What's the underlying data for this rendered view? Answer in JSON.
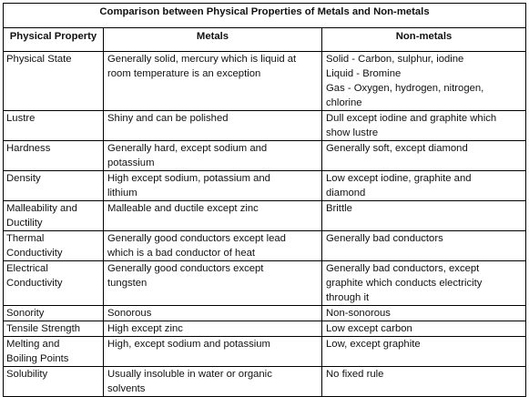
{
  "title": "Comparison between Physical Properties of Metals and Non-metals",
  "headers": [
    "Physical Property",
    "Metals",
    "Non-metals"
  ],
  "rows": [
    {
      "property": "Physical State",
      "metals": "Generally solid, mercury which is liquid at\nroom temperature is an exception",
      "nonmetals": "Solid - Carbon, sulphur, iodine\nLiquid - Bromine\nGas - Oxygen, hydrogen, nitrogen,\nchlorine"
    },
    {
      "property": "Lustre",
      "metals": "Shiny and can be polished",
      "nonmetals": "Dull except iodine and graphite which\nshow lustre"
    },
    {
      "property": "Hardness",
      "metals": "Generally hard, except sodium and\npotassium",
      "nonmetals": "Generally soft, except diamond"
    },
    {
      "property": "Density",
      "metals": "High except sodium, potassium and\nlithium",
      "nonmetals": "Low except iodine, graphite and\ndiamond"
    },
    {
      "property": "Malleability and\nDuctility",
      "metals": "Malleable and ductile except zinc",
      "nonmetals": "Brittle"
    },
    {
      "property": "Thermal\nConductivity",
      "metals": "Generally good conductors except lead\nwhich is a bad conductor of heat",
      "nonmetals": "Generally bad conductors"
    },
    {
      "property": "Electrical\nConductivity",
      "metals": "Generally good conductors except\ntungsten",
      "nonmetals": "Generally bad conductors, except\ngraphite which conducts electricity\nthrough it"
    },
    {
      "property": "Sonority",
      "metals": "Sonorous",
      "nonmetals": "Non-sonorous"
    },
    {
      "property": "Tensile Strength",
      "metals": "High except zinc",
      "nonmetals": "Low except carbon"
    },
    {
      "property": "Melting and\nBoiling Points",
      "metals": "High, except sodium and potassium",
      "nonmetals": "Low, except graphite"
    },
    {
      "property": "Solubility",
      "metals": "Usually insoluble in water or organic\nsolvents",
      "nonmetals": "No fixed rule"
    }
  ]
}
